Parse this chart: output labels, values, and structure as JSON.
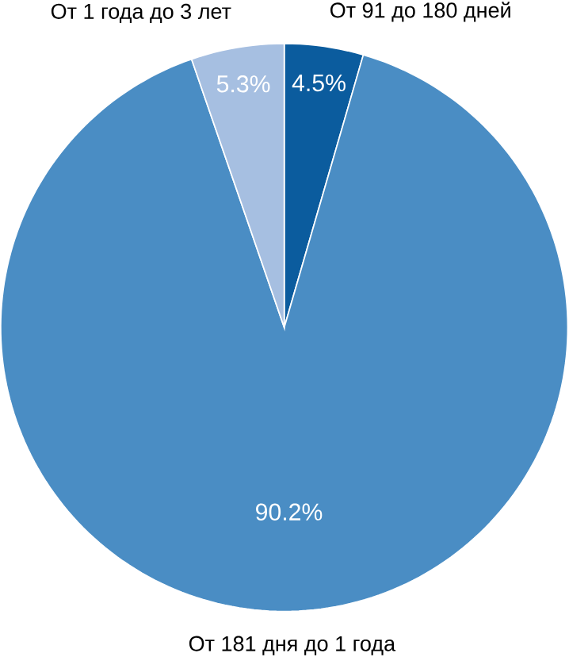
{
  "chart_data": {
    "type": "pie",
    "categories": [
      "От 91 до 180 дней",
      "От 181 дня до 1 года",
      "От 1 года до 3 лет"
    ],
    "values": [
      4.5,
      90.2,
      5.3
    ],
    "colors": [
      "#0b5c9e",
      "#4a8dc4",
      "#a6bfe1"
    ],
    "value_labels": [
      "4.5%",
      "90.2%",
      "5.3%"
    ]
  }
}
